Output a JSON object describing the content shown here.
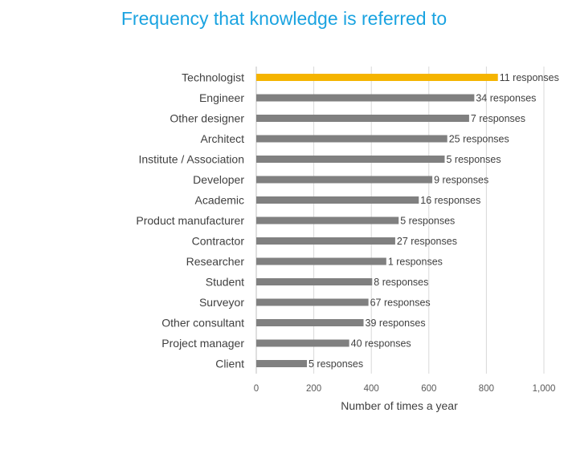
{
  "chart_data": {
    "type": "bar",
    "orientation": "horizontal",
    "title": "Frequency that knowledge is referred to",
    "xlabel": "Number of times a year",
    "ylabel": "",
    "xlim": [
      0,
      1000
    ],
    "x_ticks": [
      0,
      200,
      400,
      600,
      800,
      1000
    ],
    "x_tick_labels": [
      "0",
      "200",
      "400",
      "600",
      "800",
      "1,000"
    ],
    "grid": "vertical",
    "categories": [
      "Technologist",
      "Engineer",
      "Other designer",
      "Architect",
      "Institute / Association",
      "Developer",
      "Academic",
      "Product manufacturer",
      "Contractor",
      "Researcher",
      "Student",
      "Surveyor",
      "Other consultant",
      "Project manager",
      "Client"
    ],
    "values": [
      840,
      758,
      740,
      664,
      655,
      612,
      565,
      495,
      483,
      452,
      403,
      390,
      373,
      323,
      176
    ],
    "data_labels": [
      "11 responses",
      "34 responses",
      "7 responses",
      "25 responses",
      "5 responses",
      "9 responses",
      "16 responses",
      "5 responses",
      "27 responses",
      "1 responses",
      "8 responses",
      "67 responses",
      "39 responses",
      "40 responses",
      "5 responses"
    ],
    "highlight_index": 0
  },
  "colors": {
    "title": "#1aa3e0",
    "bar": "#808080",
    "highlight": "#f5b400",
    "grid": "#d9d9d9",
    "axis": "#bfbfbf"
  }
}
